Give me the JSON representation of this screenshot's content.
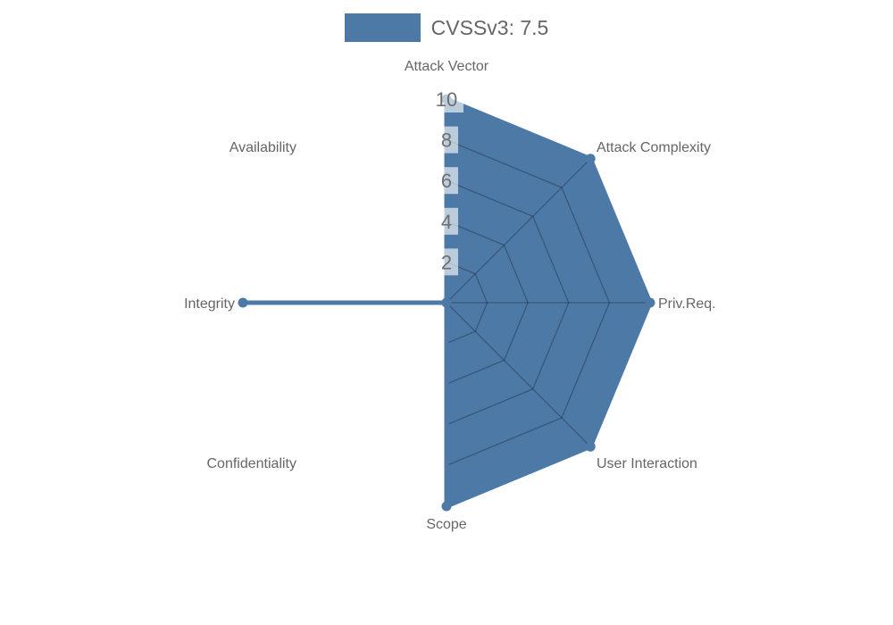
{
  "legend": {
    "label": "CVSSv3: 7.5"
  },
  "chart_data": {
    "type": "radar",
    "title": "",
    "legend_position": "top",
    "legend_entries": [
      "CVSSv3: 7.5"
    ],
    "categories": [
      "Attack Vector",
      "Attack Complexity",
      "Priv.Req.",
      "User Interaction",
      "Scope",
      "Confidentiality",
      "Integrity",
      "Availability"
    ],
    "series": [
      {
        "name": "CVSSv3: 7.5",
        "values": [
          10,
          10,
          10,
          10,
          10,
          0,
          10,
          0
        ]
      }
    ],
    "rmin": 0,
    "rmax": 10,
    "ticks": [
      2,
      4,
      6,
      8,
      10
    ],
    "grid": "polygonal web (rings at each tick + spokes), visible only inside filled area",
    "colors": {
      "fill": "#4d79a7",
      "stroke": "#4d79a7",
      "grid_line": "rgba(0,0,0,0.28)",
      "label_text": "#666666",
      "tick_text": "#6e6e6e",
      "tick_backdrop": "rgba(255,255,255,0.62)"
    }
  }
}
